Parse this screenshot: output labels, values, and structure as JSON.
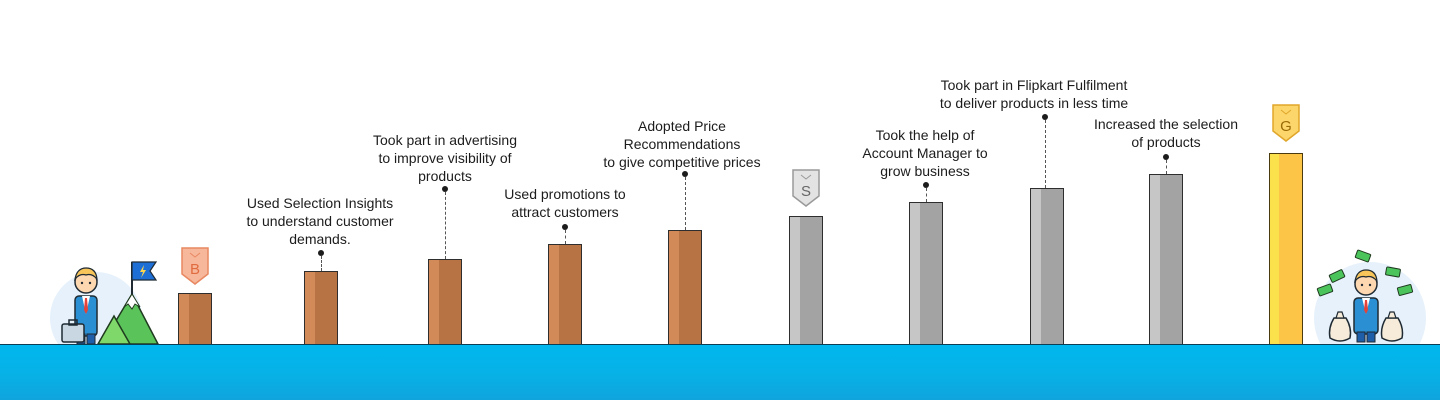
{
  "badges": {
    "bronze": "B",
    "silver": "S",
    "gold": "G"
  },
  "steps": [
    {
      "tier": "bronze",
      "text": ""
    },
    {
      "tier": "bronze",
      "text": "Used Selection Insights\nto understand customer\ndemands."
    },
    {
      "tier": "bronze",
      "text": "Took part in advertising\nto improve visibility of\nproducts"
    },
    {
      "tier": "bronze",
      "text": "Used promotions to\nattract customers"
    },
    {
      "tier": "bronze",
      "text": "Adopted Price\nRecommendations\nto give competitive prices"
    },
    {
      "tier": "silver",
      "text": ""
    },
    {
      "tier": "silver",
      "text": "Took the help of\nAccount Manager to\ngrow business"
    },
    {
      "tier": "silver",
      "text": "Took part in Flipkart Fulfilment\nto deliver products in less time"
    },
    {
      "tier": "silver",
      "text": "Increased the selection\nof products"
    },
    {
      "tier": "gold",
      "text": ""
    }
  ],
  "colors": {
    "bronze_light": "#d28a58",
    "bronze_dark": "#b87345",
    "silver_light": "#c6c6c6",
    "silver_dark": "#a3a3a3",
    "gold_light": "#fbe14c",
    "gold_dark": "#fcc548",
    "ground": "#00b7ee"
  },
  "icons": [
    "businessman-icon",
    "briefcase-icon",
    "mountain-icon",
    "flag-icon",
    "money-bag-icon",
    "cash-icon"
  ]
}
